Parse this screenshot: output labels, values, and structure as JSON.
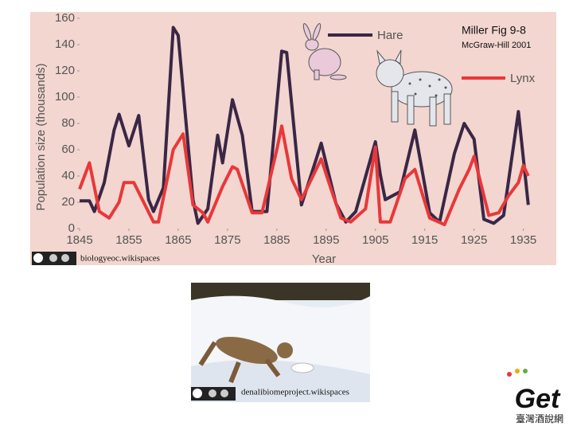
{
  "chart_data": {
    "type": "line",
    "annotations": [
      "Miller Fig 9-8",
      "McGraw-Hill 2001"
    ],
    "x_label": "Year",
    "y_label": "Population size (thousands)",
    "xlim": [
      1845,
      1937
    ],
    "ylim": [
      0,
      160
    ],
    "xticks": [
      1845,
      1855,
      1865,
      1875,
      1885,
      1895,
      1905,
      1915,
      1925,
      1935
    ],
    "yticks": [
      0,
      20,
      40,
      60,
      80,
      100,
      120,
      140,
      160
    ],
    "series": [
      {
        "name": "Hare",
        "color": "#3a2746",
        "x": [
          1845,
          1847,
          1848,
          1850,
          1852,
          1853,
          1855,
          1857,
          1859,
          1860,
          1862,
          1864,
          1865,
          1868,
          1869,
          1871,
          1873,
          1874,
          1876,
          1878,
          1880,
          1883,
          1886,
          1887,
          1890,
          1893,
          1894,
          1897,
          1899,
          1901,
          1905,
          1906,
          1907,
          1910,
          1913,
          1916,
          1918,
          1921,
          1923,
          1925,
          1927,
          1929,
          1931,
          1934,
          1936
        ],
        "values": [
          21,
          21,
          13,
          35,
          75,
          87,
          63,
          86,
          22,
          13,
          31,
          153,
          147,
          22,
          4,
          15,
          71,
          50,
          98,
          71,
          13,
          13,
          135,
          134,
          18,
          53,
          65,
          19,
          5,
          13,
          66,
          41,
          22,
          28,
          75,
          12,
          5,
          57,
          80,
          68,
          7,
          4,
          10,
          89,
          18
        ]
      },
      {
        "name": "Lynx",
        "color": "#e8383a",
        "x": [
          1845,
          1847,
          1849,
          1851,
          1853,
          1854,
          1856,
          1858,
          1860,
          1861,
          1864,
          1866,
          1868,
          1870,
          1871,
          1874,
          1876,
          1877,
          1880,
          1882,
          1885,
          1886,
          1888,
          1890,
          1894,
          1896,
          1898,
          1900,
          1903,
          1905,
          1906,
          1908,
          1911,
          1913,
          1916,
          1919,
          1922,
          1924,
          1925,
          1928,
          1930,
          1932,
          1934,
          1935,
          1936
        ],
        "values": [
          30,
          50,
          13,
          8,
          20,
          35,
          35,
          20,
          5,
          5,
          60,
          72,
          18,
          12,
          5,
          32,
          47,
          45,
          12,
          12,
          60,
          78,
          38,
          22,
          53,
          30,
          8,
          5,
          15,
          62,
          5,
          5,
          38,
          45,
          8,
          3,
          30,
          45,
          55,
          10,
          12,
          25,
          35,
          48,
          40
        ]
      }
    ]
  },
  "credits": [
    "biologyeoc.wikispaces",
    "denalibiomeproject.wikispaces"
  ],
  "logo": {
    "text": "Get",
    "subtext": "臺灣酒說網"
  }
}
